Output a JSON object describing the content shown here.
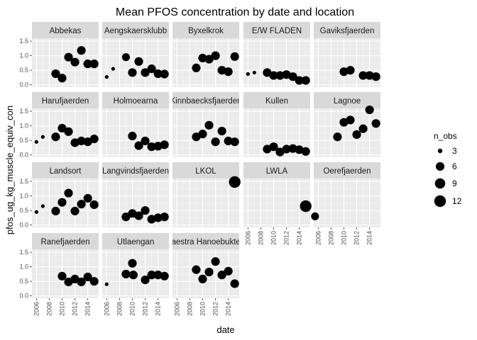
{
  "chart_data": {
    "type": "scatter",
    "title": "Mean PFOS concentration by date and location",
    "xlabel": "date",
    "ylabel": "pfos_ug_kg_muscle_equiv_con",
    "xlim": [
      2005.3,
      2015.7
    ],
    "ylim": [
      -0.08,
      1.6
    ],
    "x_ticks": [
      "2006",
      "2008",
      "2010",
      "2012",
      "2014"
    ],
    "y_ticks": [
      "0.0",
      "0.5",
      "1.0",
      "1.5"
    ],
    "grid": true,
    "facet_cols": 5,
    "legend": {
      "title": "n_obs",
      "position": "right",
      "entries": [
        {
          "label": "3",
          "value": 3
        },
        {
          "label": "6",
          "value": 6
        },
        {
          "label": "9",
          "value": 9
        },
        {
          "label": "12",
          "value": 12
        }
      ]
    },
    "size_range": [
      1,
      13
    ],
    "colors": {
      "panel_bg": "#ebebeb",
      "strip_bg": "#d9d9d9",
      "grid_major": "#ffffff",
      "grid_minor": "#f5f5f5",
      "point": "#000000",
      "tick": "#333333"
    },
    "series": [
      {
        "name": "Abbekas",
        "points": [
          [
            2009,
            0.38,
            6
          ],
          [
            2010,
            0.23,
            6
          ],
          [
            2011,
            0.95,
            6
          ],
          [
            2012,
            0.78,
            6
          ],
          [
            2013,
            1.18,
            6
          ],
          [
            2014,
            0.72,
            6
          ],
          [
            2015,
            0.72,
            6
          ]
        ]
      },
      {
        "name": "Aengskaersklubb",
        "points": [
          [
            2006,
            0.27,
            2
          ],
          [
            2007,
            0.55,
            2
          ],
          [
            2009,
            0.95,
            5
          ],
          [
            2010,
            0.42,
            6
          ],
          [
            2011,
            0.8,
            6
          ],
          [
            2012,
            0.42,
            6
          ],
          [
            2013,
            0.55,
            6
          ],
          [
            2014,
            0.38,
            6
          ],
          [
            2015,
            0.37,
            6
          ]
        ]
      },
      {
        "name": "Byxelkrok",
        "points": [
          [
            2009,
            0.58,
            6
          ],
          [
            2010,
            0.92,
            6
          ],
          [
            2011,
            0.88,
            6
          ],
          [
            2012,
            1.0,
            6
          ],
          [
            2013,
            0.5,
            6
          ],
          [
            2014,
            0.45,
            6
          ],
          [
            2015,
            0.97,
            6
          ]
        ]
      },
      {
        "name": "E/W FLADEN",
        "points": [
          [
            2006,
            0.37,
            2
          ],
          [
            2007,
            0.42,
            2
          ],
          [
            2009,
            0.42,
            6
          ],
          [
            2010,
            0.32,
            6
          ],
          [
            2011,
            0.32,
            6
          ],
          [
            2012,
            0.35,
            6
          ],
          [
            2013,
            0.28,
            6
          ],
          [
            2014,
            0.15,
            6
          ],
          [
            2015,
            0.15,
            6
          ]
        ]
      },
      {
        "name": "Gaviksfjaerden",
        "points": [
          [
            2010,
            0.45,
            6
          ],
          [
            2011,
            0.5,
            6
          ],
          [
            2013,
            0.32,
            6
          ],
          [
            2014,
            0.32,
            6
          ],
          [
            2015,
            0.28,
            6
          ]
        ]
      },
      {
        "name": "Harufjaerden",
        "points": [
          [
            2006,
            0.45,
            2
          ],
          [
            2007,
            0.62,
            2
          ],
          [
            2009,
            0.62,
            6
          ],
          [
            2010,
            0.92,
            6
          ],
          [
            2011,
            0.8,
            6
          ],
          [
            2012,
            0.42,
            6
          ],
          [
            2013,
            0.48,
            6
          ],
          [
            2014,
            0.45,
            6
          ],
          [
            2015,
            0.55,
            6
          ]
        ]
      },
      {
        "name": "Holmoearna",
        "points": [
          [
            2010,
            0.65,
            6
          ],
          [
            2011,
            0.32,
            6
          ],
          [
            2012,
            0.48,
            6
          ],
          [
            2013,
            0.28,
            6
          ],
          [
            2014,
            0.3,
            6
          ],
          [
            2015,
            0.35,
            6
          ]
        ]
      },
      {
        "name": "Kinnbaecksfjaerden",
        "points": [
          [
            2009,
            0.62,
            6
          ],
          [
            2010,
            0.72,
            6
          ],
          [
            2011,
            1.02,
            6
          ],
          [
            2012,
            0.45,
            6
          ],
          [
            2013,
            0.82,
            6
          ],
          [
            2014,
            0.48,
            6
          ],
          [
            2015,
            0.45,
            6
          ]
        ]
      },
      {
        "name": "Kullen",
        "points": [
          [
            2009,
            0.2,
            6
          ],
          [
            2010,
            0.28,
            6
          ],
          [
            2011,
            0.1,
            6
          ],
          [
            2012,
            0.2,
            6
          ],
          [
            2013,
            0.22,
            6
          ],
          [
            2014,
            0.18,
            6
          ],
          [
            2015,
            0.12,
            6
          ]
        ]
      },
      {
        "name": "Lagnoe",
        "points": [
          [
            2009,
            0.62,
            6
          ],
          [
            2010,
            1.12,
            6
          ],
          [
            2011,
            1.2,
            6
          ],
          [
            2012,
            0.7,
            6
          ],
          [
            2013,
            0.9,
            6
          ],
          [
            2014,
            1.55,
            6
          ],
          [
            2015,
            1.08,
            6
          ]
        ]
      },
      {
        "name": "Landsort",
        "points": [
          [
            2006,
            0.45,
            2
          ],
          [
            2007,
            0.65,
            2
          ],
          [
            2009,
            0.48,
            6
          ],
          [
            2010,
            0.78,
            6
          ],
          [
            2011,
            1.1,
            6
          ],
          [
            2012,
            0.48,
            6
          ],
          [
            2013,
            0.72,
            6
          ],
          [
            2014,
            0.92,
            6
          ],
          [
            2015,
            0.7,
            6
          ]
        ]
      },
      {
        "name": "Langvindsfjaerden",
        "points": [
          [
            2009,
            0.28,
            6
          ],
          [
            2010,
            0.4,
            6
          ],
          [
            2011,
            0.32,
            6
          ],
          [
            2012,
            0.5,
            6
          ],
          [
            2013,
            0.2,
            6
          ],
          [
            2014,
            0.25,
            6
          ],
          [
            2015,
            0.28,
            6
          ]
        ]
      },
      {
        "name": "LKOL",
        "points": [
          [
            2015,
            1.48,
            12
          ]
        ]
      },
      {
        "name": "LWLA",
        "points": [
          [
            2015,
            0.65,
            12
          ]
        ]
      },
      {
        "name": "Oerefjaerden",
        "points": [
          [
            2005.5,
            0.3,
            5
          ]
        ]
      },
      {
        "name": "Ranefjaerden",
        "points": [
          [
            2010,
            0.68,
            6
          ],
          [
            2011,
            0.48,
            6
          ],
          [
            2012,
            0.58,
            6
          ],
          [
            2013,
            0.48,
            6
          ],
          [
            2014,
            0.65,
            6
          ],
          [
            2015,
            0.5,
            6
          ]
        ]
      },
      {
        "name": "Utlaengan",
        "points": [
          [
            2006,
            0.4,
            2
          ],
          [
            2009,
            0.75,
            6
          ],
          [
            2010,
            1.12,
            6
          ],
          [
            2010.15,
            0.72,
            6
          ],
          [
            2012,
            0.55,
            6
          ],
          [
            2013,
            0.72,
            6
          ],
          [
            2014,
            0.72,
            6
          ],
          [
            2015,
            0.68,
            6
          ]
        ]
      },
      {
        "name": "Vaestra Hanoebukten",
        "points": [
          [
            2009,
            0.9,
            6
          ],
          [
            2010,
            0.58,
            6
          ],
          [
            2011,
            0.82,
            6
          ],
          [
            2012,
            1.18,
            6
          ],
          [
            2013,
            0.72,
            6
          ],
          [
            2014,
            0.85,
            6
          ],
          [
            2015,
            0.42,
            6
          ]
        ]
      }
    ]
  }
}
